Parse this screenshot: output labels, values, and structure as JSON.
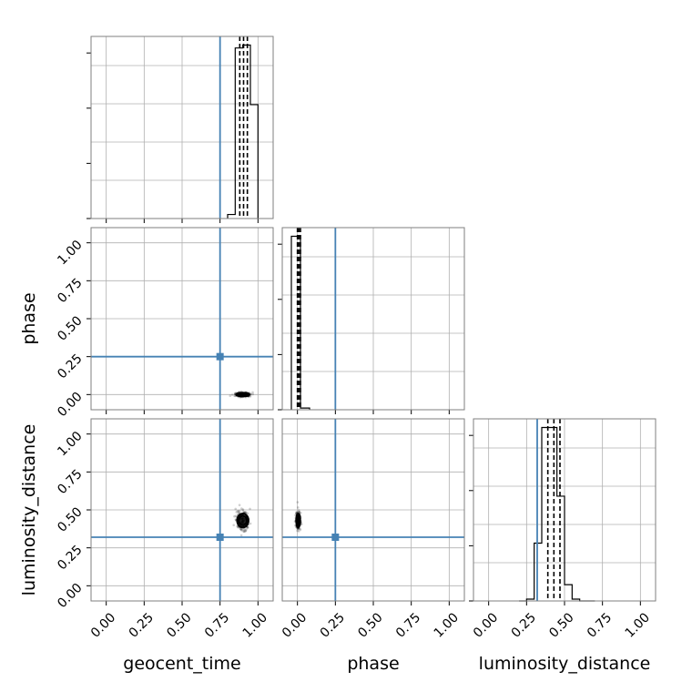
{
  "chart_data": {
    "type": "corner",
    "parameters": [
      "geocent_time",
      "phase",
      "luminosity_distance"
    ],
    "axis_labels": {
      "geocent_time": "geocent_time",
      "phase": "phase",
      "luminosity_distance": "luminosity_distance"
    },
    "range": [
      -0.1,
      1.1
    ],
    "ticks": [
      0.0,
      0.25,
      0.5,
      0.75,
      1.0
    ],
    "tick_labels": [
      "0.00",
      "0.25",
      "0.50",
      "0.75",
      "1.00"
    ],
    "truths": {
      "geocent_time": 0.75,
      "phase": 0.25,
      "luminosity_distance": 0.32
    },
    "quantiles": {
      "geocent_time": [
        0.88,
        0.905,
        0.93
      ],
      "phase": [
        0.0,
        0.01,
        0.02
      ],
      "luminosity_distance": [
        0.39,
        0.43,
        0.47
      ]
    },
    "histograms": {
      "geocent_time": {
        "bin_edges": [
          0.8,
          0.85,
          0.9,
          0.95,
          1.0
        ],
        "counts": [
          0.07,
          2.95,
          3.0,
          1.97
        ]
      },
      "phase": {
        "bin_edges": [
          -0.04,
          0.02,
          0.08
        ],
        "counts": [
          1.0,
          0.01
        ]
      },
      "luminosity_distance": {
        "bin_edges": [
          0.2,
          0.25,
          0.3,
          0.35,
          0.4,
          0.45,
          0.5,
          0.55,
          0.6,
          0.65,
          0.7
        ],
        "counts": [
          0.0,
          0.05,
          1.6,
          4.8,
          4.8,
          2.9,
          0.45,
          0.05,
          0.0,
          0.0
        ]
      }
    },
    "joint": {
      "phase_vs_geocent_time": {
        "center": [
          0.9,
          0.0
        ],
        "spread": [
          0.04,
          0.012
        ]
      },
      "luminosity_distance_vs_geocent_time": {
        "center": [
          0.9,
          0.43
        ],
        "spread": [
          0.035,
          0.05
        ]
      },
      "luminosity_distance_vs_phase": {
        "center": [
          0.005,
          0.43
        ],
        "spread": [
          0.012,
          0.05
        ]
      }
    },
    "grid": true,
    "truth_color": "#4682b4",
    "histogram_color": "#000000"
  }
}
